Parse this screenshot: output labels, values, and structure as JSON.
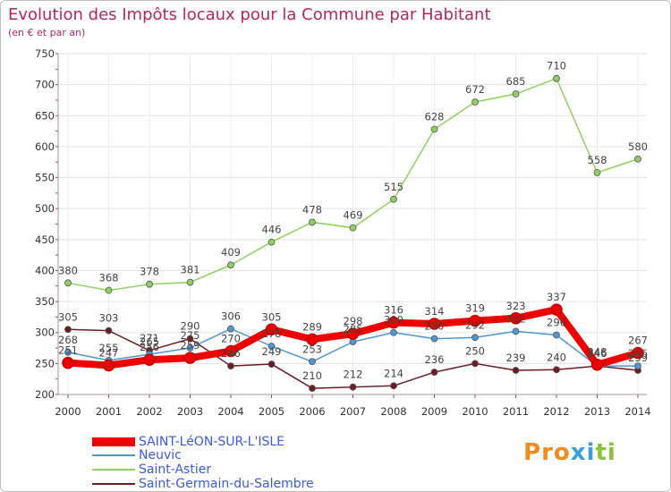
{
  "chart_data": {
    "type": "line",
    "title": "Evolution des Impôts locaux pour la Commune par Habitant",
    "subtitle": "(en € et par an)",
    "xlabel": "",
    "ylabel": "",
    "categories": [
      "2000",
      "2001",
      "2002",
      "2003",
      "2004",
      "2005",
      "2006",
      "2007",
      "2008",
      "2009",
      "2010",
      "2011",
      "2012",
      "2013",
      "2014"
    ],
    "ylim": [
      200,
      750
    ],
    "yticks": [
      200,
      250,
      300,
      350,
      400,
      450,
      500,
      550,
      600,
      650,
      700,
      750
    ],
    "grid": true,
    "legend_position": "bottom-left",
    "series": [
      {
        "name": "SAINT-LéON-SUR-L'ISLE",
        "color": "#ee0000",
        "values": [
          251,
          247,
          256,
          259,
          270,
          305,
          289,
          298,
          316,
          314,
          319,
          323,
          337,
          248,
          267
        ]
      },
      {
        "name": "Neuvic",
        "color": "#4f97d0",
        "values": [
          268,
          255,
          265,
          275,
          306,
          278,
          253,
          285,
          300,
          290,
          292,
          302,
          296,
          246,
          246
        ]
      },
      {
        "name": "Saint-Astier",
        "color": "#8fd160",
        "values": [
          380,
          368,
          378,
          381,
          409,
          446,
          478,
          469,
          515,
          628,
          672,
          685,
          710,
          558,
          580
        ]
      },
      {
        "name": "Saint-Germain-du-Salembre",
        "color": "#6b1c24",
        "values": [
          305,
          303,
          271,
          290,
          246,
          249,
          210,
          212,
          214,
          236,
          250,
          239,
          240,
          246,
          239
        ]
      }
    ]
  },
  "logo": {
    "letters": [
      "P",
      "r",
      "o",
      "x",
      "i",
      "t",
      "i"
    ],
    "colors": [
      "#f08c1e",
      "#f08c1e",
      "#f08c1e",
      "#3aa0d8",
      "#3aa0d8",
      "#8ac43f",
      "#8ac43f"
    ]
  }
}
